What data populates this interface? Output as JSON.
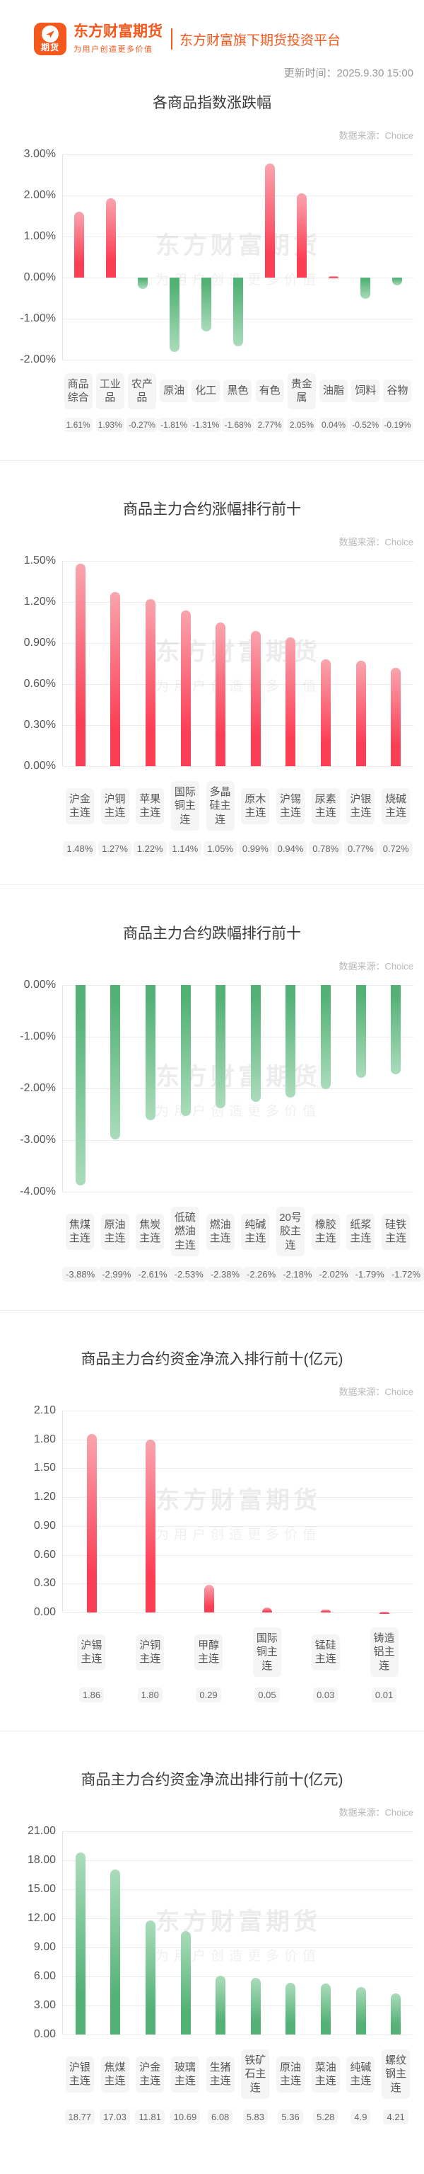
{
  "header": {
    "logo_badge_text": "期货",
    "brand_name": "东方财富期货",
    "brand_slogan": "为用户创造更多价值",
    "platform_text": "东方财富旗下期货投资平台",
    "update_time": "更新时间：2025.9.30 15:00"
  },
  "watermark": {
    "line1": "东方财富期货",
    "line2": "为用户创造更多价值"
  },
  "colors": {
    "brand_orange": "#f4581d",
    "up_red_base": "#fc3e55",
    "up_red_tip": "#f9a5ae",
    "down_green_base": "#53b175",
    "down_green_tip": "#abdcbb",
    "gridline": "#ebebeb",
    "title_text": "#3a3a3a",
    "source_text": "#b9b9b9"
  },
  "chart_data": [
    {
      "type": "bar",
      "title": "各商品指数涨跌幅",
      "source": "数据来源：Choice",
      "categories": [
        "商品综合",
        "工业品",
        "农产品",
        "原油",
        "化工",
        "黑色",
        "有色",
        "贵金属",
        "油脂",
        "饲料",
        "谷物"
      ],
      "values": [
        1.61,
        1.93,
        -0.27,
        -1.81,
        -1.31,
        -1.68,
        2.77,
        2.05,
        0.04,
        -0.52,
        -0.19
      ],
      "value_labels": [
        "1.61%",
        "1.93%",
        "-0.27%",
        "-1.81%",
        "-1.31%",
        "-1.68%",
        "2.77%",
        "2.05%",
        "0.04%",
        "-0.52%",
        "-0.19%"
      ],
      "yticks": [
        "3.00%",
        "2.00%",
        "1.00%",
        "0.00%",
        "-1.00%",
        "-2.00%"
      ],
      "ylim": [
        -2,
        3
      ],
      "bar_style": "by-sign",
      "xlabel": "",
      "ylabel": "",
      "grid": true,
      "legend": "none"
    },
    {
      "type": "bar",
      "title": "商品主力合约涨幅排行前十",
      "source": "数据来源：Choice",
      "categories": [
        "沪金主连",
        "沪铜主连",
        "苹果主连",
        "国际铜主连",
        "多晶硅主连",
        "原木主连",
        "沪锡主连",
        "尿素主连",
        "沪银主连",
        "烧碱主连"
      ],
      "values": [
        1.48,
        1.27,
        1.22,
        1.14,
        1.05,
        0.99,
        0.94,
        0.78,
        0.77,
        0.72
      ],
      "value_labels": [
        "1.48%",
        "1.27%",
        "1.22%",
        "1.14%",
        "1.05%",
        "0.99%",
        "0.94%",
        "0.78%",
        "0.77%",
        "0.72%"
      ],
      "yticks": [
        "1.50%",
        "1.20%",
        "0.90%",
        "0.60%",
        "0.30%",
        "0.00%"
      ],
      "ylim": [
        0,
        1.5
      ],
      "bar_style": "red",
      "xlabel": "",
      "ylabel": "",
      "grid": true,
      "legend": "none"
    },
    {
      "type": "bar",
      "title": "商品主力合约跌幅排行前十",
      "source": "数据来源：Choice",
      "categories": [
        "焦煤主连",
        "原油主连",
        "焦炭主连",
        "低硫燃油主连",
        "燃油主连",
        "纯碱主连",
        "20号胶主连",
        "橡胶主连",
        "纸浆主连",
        "硅铁主连"
      ],
      "values": [
        -3.88,
        -2.99,
        -2.61,
        -2.53,
        -2.38,
        -2.26,
        -2.18,
        -2.02,
        -1.79,
        -1.72
      ],
      "value_labels": [
        "-3.88%",
        "-2.99%",
        "-2.61%",
        "-2.53%",
        "-2.38%",
        "-2.26%",
        "-2.18%",
        "-2.02%",
        "-1.79%",
        "-1.72%"
      ],
      "yticks": [
        "0.00%",
        "-1.00%",
        "-2.00%",
        "-3.00%",
        "-4.00%"
      ],
      "ylim": [
        -4,
        0
      ],
      "bar_style": "green",
      "xlabel": "",
      "ylabel": "",
      "grid": true,
      "legend": "none"
    },
    {
      "type": "bar",
      "title": "商品主力合约资金净流入排行前十(亿元)",
      "source": "数据来源：Choice",
      "categories": [
        "沪锡主连",
        "沪铜主连",
        "甲醇主连",
        "国际铜主连",
        "锰硅主连",
        "铸造铝主连"
      ],
      "values": [
        1.86,
        1.8,
        0.29,
        0.05,
        0.03,
        0.01
      ],
      "value_labels": [
        "1.86",
        "1.80",
        "0.29",
        "0.05",
        "0.03",
        "0.01"
      ],
      "yticks": [
        "2.10",
        "1.80",
        "1.50",
        "1.20",
        "0.90",
        "0.60",
        "0.30",
        "0.00"
      ],
      "ylim": [
        0,
        2.1
      ],
      "bar_style": "red",
      "xlabel": "",
      "ylabel": "",
      "grid": true,
      "legend": "none"
    },
    {
      "type": "bar",
      "title": "商品主力合约资金净流出排行前十(亿元)",
      "source": "数据来源：Choice",
      "categories": [
        "沪银主连",
        "焦煤主连",
        "沪金主连",
        "玻璃主连",
        "生猪主连",
        "铁矿石主连",
        "原油主连",
        "菜油主连",
        "纯碱主连",
        "螺纹钢主连"
      ],
      "values": [
        18.77,
        17.03,
        11.81,
        10.69,
        6.08,
        5.83,
        5.36,
        5.28,
        4.9,
        4.21
      ],
      "value_labels": [
        "18.77",
        "17.03",
        "11.81",
        "10.69",
        "6.08",
        "5.83",
        "5.36",
        "5.28",
        "4.9",
        "4.21"
      ],
      "yticks": [
        "21.00",
        "18.00",
        "15.00",
        "12.00",
        "9.00",
        "6.00",
        "3.00",
        "0.00"
      ],
      "ylim": [
        0,
        21
      ],
      "bar_style": "green",
      "xlabel": "",
      "ylabel": "",
      "grid": true,
      "legend": "none"
    }
  ]
}
